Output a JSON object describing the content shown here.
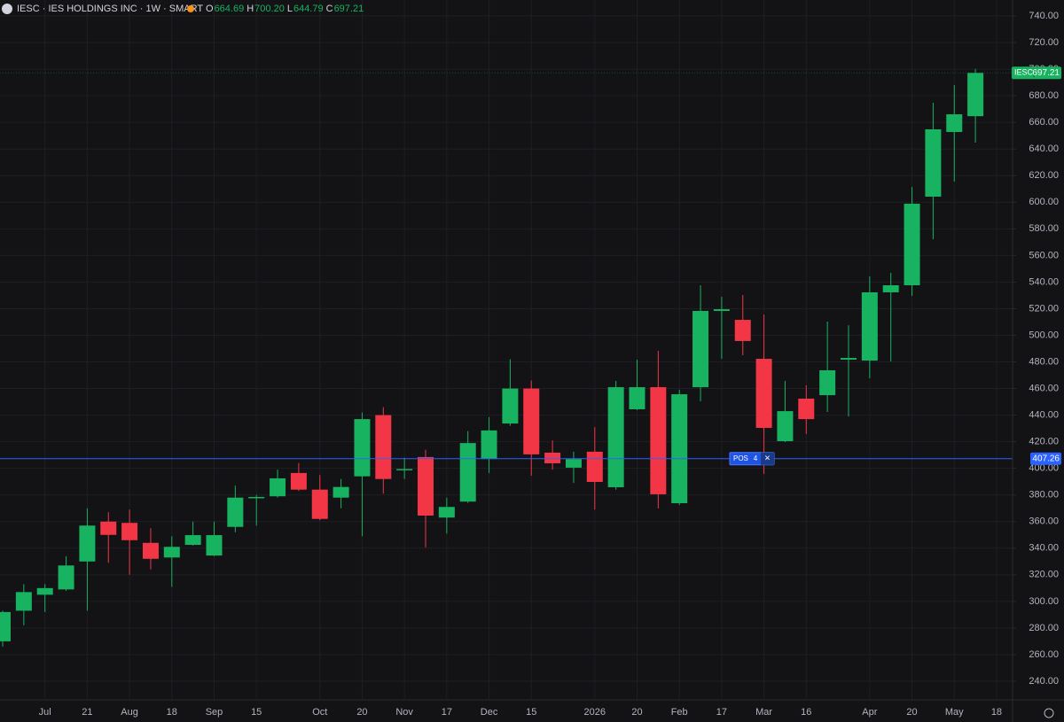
{
  "header": {
    "title": "IESC · IES HOLDINGS INC · 1W · SMART",
    "ohlc": [
      {
        "key": "O",
        "value": "664.69"
      },
      {
        "key": "H",
        "value": "700.20"
      },
      {
        "key": "L",
        "value": "644.79"
      },
      {
        "key": "C",
        "value": "697.21"
      }
    ]
  },
  "chart_data": {
    "type": "candlestick",
    "categories": [
      null,
      null,
      "Jul",
      null,
      "21",
      null,
      "Aug",
      null,
      "18",
      null,
      "Sep",
      null,
      "15",
      null,
      null,
      "Oct",
      null,
      "20",
      null,
      "Nov",
      null,
      "17",
      null,
      "Dec",
      null,
      "15",
      null,
      null,
      "2026",
      null,
      "20",
      null,
      "Feb",
      null,
      "17",
      null,
      "Mar",
      null,
      "16",
      null,
      null,
      "Apr",
      null,
      "20",
      null,
      "May",
      null,
      "18"
    ],
    "open": [
      270,
      293,
      305,
      309,
      330,
      360,
      359,
      344,
      333,
      342.5,
      334.5,
      356,
      377.5,
      379,
      396.5,
      384,
      378,
      394,
      440,
      399,
      408.5,
      363,
      375,
      407,
      433.7,
      460,
      411.8,
      400.5,
      412.5,
      385.8,
      444.4,
      461,
      373.8,
      461,
      518.3,
      511.6,
      482.3,
      420.4,
      452.4,
      455,
      481.7,
      481,
      532.3,
      537.6,
      604.2,
      652.8,
      664.69,
      null
    ],
    "high": [
      293,
      313,
      313,
      334,
      370,
      367,
      369,
      355,
      349,
      360,
      360,
      387,
      380,
      399,
      404,
      395,
      392,
      442,
      446,
      408,
      414,
      378,
      428,
      438.5,
      482,
      466,
      421,
      412.5,
      431,
      465.7,
      481.7,
      488.3,
      459,
      537.6,
      529,
      530.3,
      515.6,
      465.7,
      462.4,
      510.3,
      507.6,
      544.3,
      547,
      611.5,
      674.8,
      688,
      700.2,
      null
    ],
    "low": [
      266,
      282,
      292,
      308,
      293,
      329,
      320,
      324,
      311,
      342,
      334,
      352,
      357,
      378,
      383,
      361,
      370,
      349,
      381,
      392,
      340.5,
      351,
      374,
      396.5,
      432,
      394.5,
      399,
      389,
      369,
      384,
      443.7,
      369.8,
      372.5,
      450.4,
      482.3,
      485,
      395.8,
      419.8,
      425.8,
      442.4,
      439,
      467.7,
      480.3,
      529.6,
      572.2,
      615.5,
      644.79,
      null
    ],
    "close": [
      292,
      307,
      310,
      327,
      357,
      350,
      346,
      332,
      341,
      349.8,
      349.8,
      378,
      378.5,
      392.5,
      384,
      362,
      386,
      437,
      392,
      399.5,
      364.5,
      371,
      419,
      428.5,
      460,
      410.5,
      403.8,
      407,
      389.8,
      461,
      461,
      380.5,
      455.7,
      518.3,
      519.6,
      495.7,
      430.4,
      443,
      437,
      473.7,
      483,
      532.3,
      537.6,
      598.9,
      654.8,
      666.1,
      697.21,
      null
    ],
    "up_color": "#17b360",
    "down_color": "#f23645",
    "ylim": [
      226,
      752
    ],
    "yticks": [
      {
        "value": 240,
        "label": "240.00"
      },
      {
        "value": 260,
        "label": "260.00"
      },
      {
        "value": 280,
        "label": "280.00"
      },
      {
        "value": 300,
        "label": "300.00"
      },
      {
        "value": 320,
        "label": "320.00"
      },
      {
        "value": 340,
        "label": "340.00"
      },
      {
        "value": 360,
        "label": "360.00"
      },
      {
        "value": 380,
        "label": "380.00"
      },
      {
        "value": 400,
        "label": "400.00"
      },
      {
        "value": 420,
        "label": "420.00"
      },
      {
        "value": 440,
        "label": "440.00"
      },
      {
        "value": 460,
        "label": "460.00"
      },
      {
        "value": 480,
        "label": "480.00"
      },
      {
        "value": 500,
        "label": "500.00"
      },
      {
        "value": 520,
        "label": "520.00"
      },
      {
        "value": 540,
        "label": "540.00"
      },
      {
        "value": 560,
        "label": "560.00"
      },
      {
        "value": 580,
        "label": "580.00"
      },
      {
        "value": 600,
        "label": "600.00"
      },
      {
        "value": 620,
        "label": "620.00"
      },
      {
        "value": 640,
        "label": "640.00"
      },
      {
        "value": 660,
        "label": "660.00"
      },
      {
        "value": 680,
        "label": "680.00"
      },
      {
        "value": 700,
        "label": "700.00"
      },
      {
        "value": 720,
        "label": "720.00"
      },
      {
        "value": 740,
        "label": "740.00"
      }
    ],
    "grid": true,
    "last_price": {
      "symbol": "IESC",
      "value": 697.21,
      "label": "697.21"
    },
    "position": {
      "value": 407.26,
      "label": "407.26",
      "tag": "POS",
      "quantity": 4,
      "close_icon": "×",
      "color": "#2962ff"
    }
  }
}
